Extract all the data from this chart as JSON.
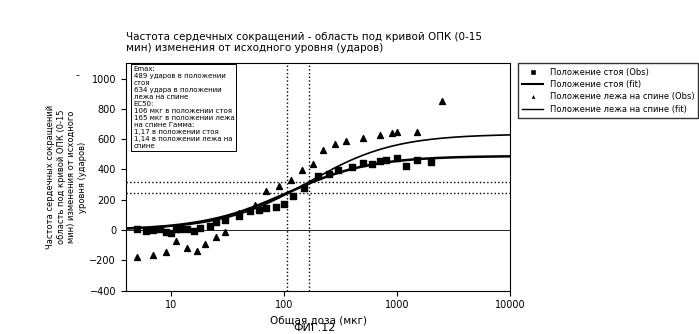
{
  "title": "Частота сердечных сокращений - область под кривой ОПК (0-15\nмин) изменения от исходного уровня (ударов)",
  "xlabel": "Общая доза (мкг)",
  "ylabel": "Частота сердечных сокращений\nобласть под кривой ОПК (0-15\nмин) изменения от исходного\nуровня (ударов)",
  "fig_label": "ФИГ.12",
  "ylim": [
    -400,
    1100
  ],
  "yticks": [
    -400,
    -200,
    0,
    200,
    400,
    600,
    800,
    1000
  ],
  "emax_standing": 489,
  "emax_supine": 634,
  "ec50_standing": 106,
  "ec50_supine": 165,
  "gamma_standing": 1.17,
  "gamma_supine": 1.14,
  "annotation_text": "Emax:\n489 ударов в положении\nстоя\n634 удара в положении\nлежа на спине\nEC50:\n106 мкг в положении стоя\n165 мкг в положении лежа\nна спине Гамма:\n1,17 в положении стоя\n1,14 в положении лежа на\nспине",
  "scatter_standing_x": [
    5,
    6,
    7,
    8,
    9,
    10,
    11,
    12,
    14,
    16,
    18,
    22,
    25,
    30,
    40,
    50,
    60,
    70,
    85,
    100,
    120,
    150,
    200,
    250,
    300,
    400,
    500,
    600,
    700,
    800,
    1000,
    1200,
    1500,
    2000
  ],
  "scatter_standing_y": [
    5,
    -5,
    0,
    8,
    -15,
    -20,
    5,
    10,
    10,
    -5,
    15,
    25,
    50,
    65,
    95,
    125,
    130,
    145,
    155,
    175,
    225,
    280,
    355,
    370,
    395,
    415,
    445,
    435,
    455,
    465,
    475,
    425,
    460,
    450
  ],
  "scatter_supine_x": [
    5,
    7,
    9,
    11,
    14,
    17,
    20,
    25,
    30,
    40,
    55,
    70,
    90,
    115,
    145,
    180,
    220,
    280,
    350,
    500,
    700,
    1000,
    1500,
    2500,
    900
  ],
  "scatter_supine_y": [
    -180,
    -165,
    -145,
    -70,
    -120,
    -140,
    -90,
    -45,
    -15,
    115,
    165,
    255,
    290,
    330,
    395,
    435,
    530,
    570,
    590,
    610,
    630,
    645,
    650,
    855,
    640
  ],
  "hline_standing": 244,
  "hline_supine": 317,
  "vline_ec50_standing": 106,
  "vline_ec50_supine": 165,
  "bg_color": "#ffffff"
}
